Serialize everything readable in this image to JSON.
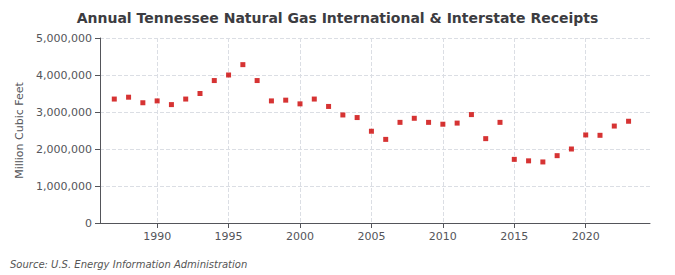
{
  "chart_data": {
    "type": "scatter",
    "title": "Annual Tennessee Natural Gas International & Interstate Receipts",
    "ylabel": "Million Cubic Feet",
    "annotation": "Source: U.S. Energy Information Administration",
    "color": "#cc0000",
    "marker": "square",
    "grid": true,
    "x": [
      1987,
      1988,
      1989,
      1990,
      1991,
      1992,
      1993,
      1994,
      1995,
      1996,
      1997,
      1998,
      1999,
      2000,
      2001,
      2002,
      2003,
      2004,
      2005,
      2006,
      2007,
      2008,
      2009,
      2010,
      2011,
      2012,
      2013,
      2014,
      2015,
      2016,
      2017,
      2018,
      2019,
      2020,
      2021,
      2022,
      2023
    ],
    "values": [
      3350000,
      3400000,
      3250000,
      3300000,
      3200000,
      3350000,
      3500000,
      3850000,
      4000000,
      4280000,
      3850000,
      3300000,
      3320000,
      3220000,
      3350000,
      3150000,
      2920000,
      2850000,
      2480000,
      2260000,
      2720000,
      2830000,
      2720000,
      2670000,
      2700000,
      2930000,
      2280000,
      2720000,
      1720000,
      1680000,
      1650000,
      1820000,
      2000000,
      2380000,
      2370000,
      2620000,
      2750000
    ],
    "xlim": [
      1986.0,
      2024.5
    ],
    "xticks": [
      1990,
      1995,
      2000,
      2005,
      2010,
      2015,
      2020
    ],
    "ylim": [
      0,
      5000000
    ],
    "yticks": [
      0,
      {
        "value": 1000000,
        "label": "1,000,000"
      },
      {
        "value": 2000000,
        "label": "2,000,000"
      },
      {
        "value": 3000000,
        "label": "3,000,000"
      },
      {
        "value": 4000000,
        "label": "4,000,000"
      },
      {
        "value": 5000000,
        "label": "5,000,000"
      }
    ]
  }
}
